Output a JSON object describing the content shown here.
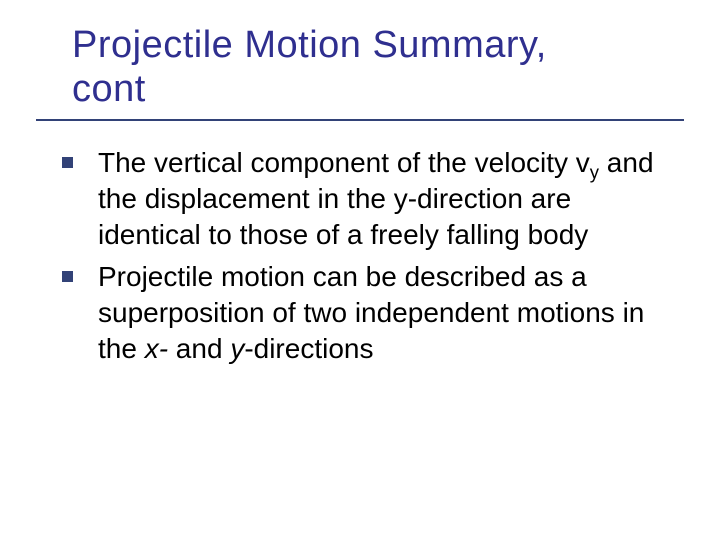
{
  "colors": {
    "title_text": "#2f2f8f",
    "title_underline": "#324277",
    "body_text": "#000000",
    "bullet_fill": "#324277",
    "background": "#ffffff"
  },
  "typography": {
    "font_family": "Verdana",
    "title_fontsize_pt": 38,
    "body_fontsize_pt": 28,
    "subscript_scale": 0.66
  },
  "title": {
    "line1": "Projectile Motion Summary,",
    "line2": "cont"
  },
  "bullets": [
    {
      "frag1": "The vertical component of the velocity v",
      "sub": "y",
      "frag2": " and the displacement in the y-direction are identical to those of a freely falling body"
    },
    {
      "frag1": "Projectile motion can be described as a superposition of two independent motions in the ",
      "ital1": "x-",
      "frag2": " and ",
      "ital2": "y",
      "frag3": "-directions"
    }
  ]
}
